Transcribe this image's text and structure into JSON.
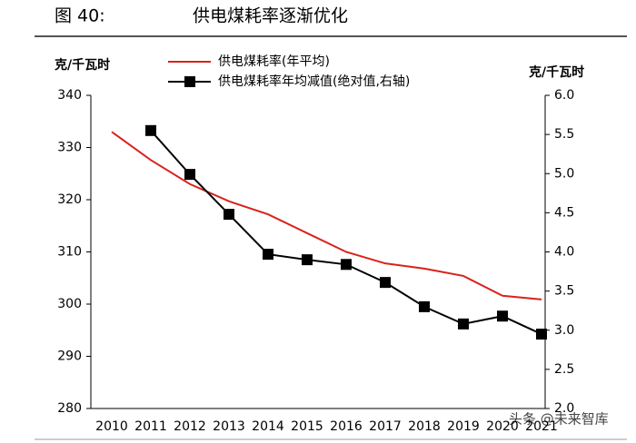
{
  "figure_label": "图 40:",
  "chart_data": {
    "type": "line",
    "title": "供电煤耗率逐渐优化",
    "y_label": "克/千瓦时",
    "y2_label": "克/千瓦时",
    "categories": [
      "2010",
      "2011",
      "2012",
      "2013",
      "2014",
      "2015",
      "2016",
      "2017",
      "2018",
      "2019",
      "2020",
      "2021"
    ],
    "series": [
      {
        "name": "供电煤耗率(年平均)",
        "color": "#d9221c",
        "marker": "none",
        "values": [
          333,
          327.6,
          323,
          319.7,
          317.2,
          313.6,
          310,
          307.8,
          306.8,
          305.4,
          301.6,
          300.9
        ]
      },
      {
        "name": "供电煤耗率年均减值(绝对值,右轴)",
        "color": "#000000",
        "marker": "square",
        "axis": "y2",
        "values": [
          null,
          5.55,
          4.99,
          4.48,
          3.97,
          3.9,
          3.84,
          3.61,
          3.3,
          3.08,
          3.18,
          2.95
        ]
      }
    ],
    "ylim": [
      280,
      340
    ],
    "yticks": [
      280,
      290,
      300,
      310,
      320,
      330,
      340
    ],
    "y2lim": [
      2,
      6
    ],
    "y2ticks": [
      {
        "value": 2,
        "label": "2.0"
      },
      2.5,
      {
        "value": 3,
        "label": "3.0"
      },
      3.5,
      {
        "value": 4,
        "label": "4.0"
      },
      4.5,
      {
        "value": 5,
        "label": "5.0"
      },
      5.5,
      {
        "value": 6,
        "label": "6.0"
      }
    ],
    "grid": false
  },
  "watermark": "头条 @未来智库"
}
